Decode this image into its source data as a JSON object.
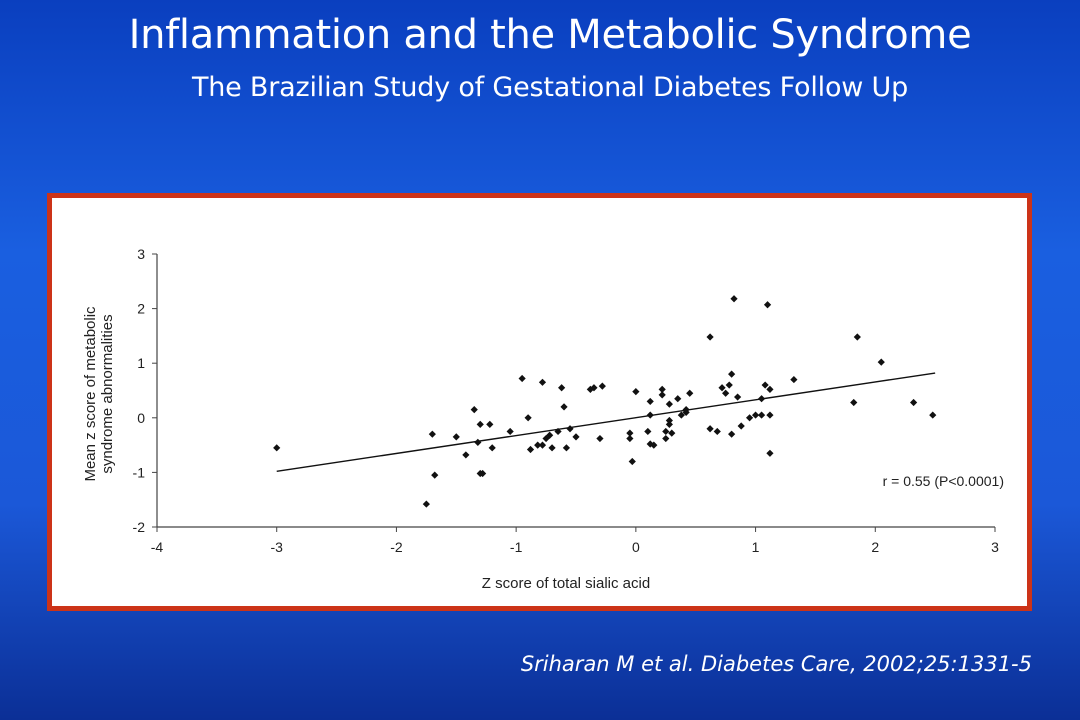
{
  "slide": {
    "title": "Inflammation and the Metabolic Syndrome",
    "subtitle": "The Brazilian Study of Gestational Diabetes Follow Up",
    "citation": "Sriharan M et al. Diabetes Care, 2002;25:1331-5",
    "background_color": "#1b58d8",
    "frame_color": "#cc3318"
  },
  "chart_data": {
    "type": "scatter",
    "xlabel": "Z score of total sialic acid",
    "ylabel_lines": [
      "Mean z score of metabolic",
      "syndrome abnormalities"
    ],
    "xlim": [
      -4,
      3
    ],
    "ylim": [
      -2,
      3
    ],
    "xticks": [
      -4,
      -3,
      -2,
      -1,
      0,
      1,
      2,
      3
    ],
    "yticks": [
      -2,
      -1,
      0,
      1,
      2,
      3
    ],
    "grid": false,
    "annotation": "r = 0.55 (P<0.0001)",
    "regression_line": {
      "x": [
        -3.0,
        2.5
      ],
      "y": [
        -0.98,
        0.82
      ]
    },
    "points": [
      [
        -3.0,
        -0.55
      ],
      [
        -1.75,
        -1.58
      ],
      [
        -1.7,
        -0.3
      ],
      [
        -1.68,
        -1.05
      ],
      [
        -1.5,
        -0.35
      ],
      [
        -1.42,
        -0.68
      ],
      [
        -1.35,
        0.15
      ],
      [
        -1.32,
        -0.45
      ],
      [
        -1.3,
        -1.02
      ],
      [
        -1.28,
        -1.02
      ],
      [
        -1.3,
        -0.12
      ],
      [
        -1.22,
        -0.12
      ],
      [
        -1.2,
        -0.55
      ],
      [
        -1.05,
        -0.25
      ],
      [
        -0.95,
        0.72
      ],
      [
        -0.9,
        0.0
      ],
      [
        -0.88,
        -0.58
      ],
      [
        -0.82,
        -0.5
      ],
      [
        -0.78,
        -0.5
      ],
      [
        -0.78,
        0.65
      ],
      [
        -0.75,
        -0.38
      ],
      [
        -0.72,
        -0.32
      ],
      [
        -0.7,
        -0.55
      ],
      [
        -0.65,
        -0.25
      ],
      [
        -0.62,
        0.55
      ],
      [
        -0.6,
        0.2
      ],
      [
        -0.58,
        -0.55
      ],
      [
        -0.55,
        -0.2
      ],
      [
        -0.5,
        -0.35
      ],
      [
        -0.38,
        0.52
      ],
      [
        -0.35,
        0.55
      ],
      [
        -0.3,
        -0.38
      ],
      [
        -0.28,
        0.58
      ],
      [
        -0.05,
        -0.28
      ],
      [
        -0.05,
        -0.38
      ],
      [
        -0.03,
        -0.8
      ],
      [
        0.0,
        0.48
      ],
      [
        0.1,
        -0.25
      ],
      [
        0.12,
        -0.48
      ],
      [
        0.12,
        0.05
      ],
      [
        0.12,
        0.3
      ],
      [
        0.15,
        -0.5
      ],
      [
        0.22,
        0.42
      ],
      [
        0.22,
        0.52
      ],
      [
        0.25,
        -0.25
      ],
      [
        0.25,
        -0.38
      ],
      [
        0.28,
        -0.12
      ],
      [
        0.28,
        -0.05
      ],
      [
        0.28,
        0.25
      ],
      [
        0.3,
        -0.28
      ],
      [
        0.35,
        0.35
      ],
      [
        0.38,
        0.05
      ],
      [
        0.42,
        0.1
      ],
      [
        0.42,
        0.15
      ],
      [
        0.45,
        0.45
      ],
      [
        0.62,
        1.48
      ],
      [
        0.62,
        -0.2
      ],
      [
        0.68,
        -0.25
      ],
      [
        0.72,
        0.55
      ],
      [
        0.75,
        0.45
      ],
      [
        0.78,
        0.6
      ],
      [
        0.8,
        0.8
      ],
      [
        0.8,
        -0.3
      ],
      [
        0.82,
        2.18
      ],
      [
        0.85,
        0.38
      ],
      [
        0.88,
        -0.15
      ],
      [
        0.95,
        0.0
      ],
      [
        1.0,
        0.05
      ],
      [
        1.05,
        0.05
      ],
      [
        1.05,
        0.35
      ],
      [
        1.08,
        0.6
      ],
      [
        1.1,
        2.07
      ],
      [
        1.12,
        0.52
      ],
      [
        1.12,
        0.05
      ],
      [
        1.12,
        -0.65
      ],
      [
        1.32,
        0.7
      ],
      [
        1.82,
        0.28
      ],
      [
        1.85,
        1.48
      ],
      [
        2.05,
        1.02
      ],
      [
        2.32,
        0.28
      ],
      [
        2.48,
        0.05
      ]
    ]
  }
}
